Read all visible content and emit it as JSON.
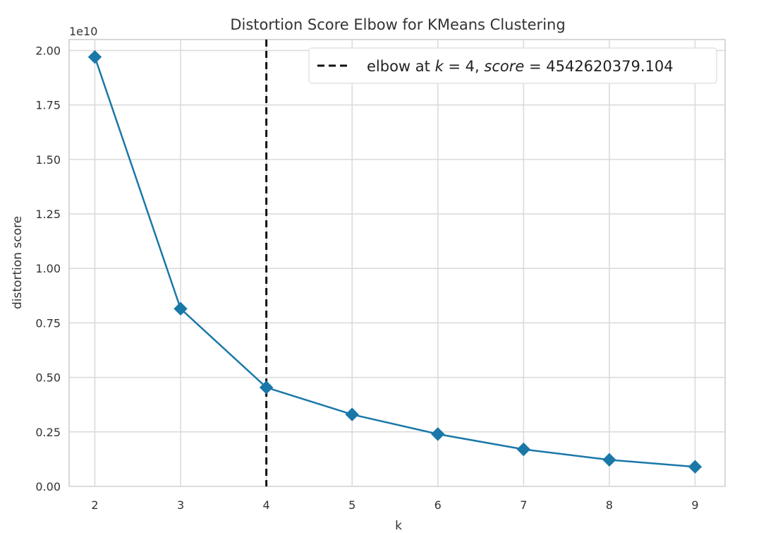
{
  "chart_data": {
    "type": "line",
    "title": "Distortion Score Elbow for KMeans Clustering",
    "xlabel": "k",
    "ylabel": "distortion score",
    "y_offset_label": "1e10",
    "x": [
      2,
      3,
      4,
      5,
      6,
      7,
      8,
      9
    ],
    "series": [
      {
        "values": [
          19.7,
          8.15,
          4.54,
          3.3,
          2.4,
          1.7,
          1.22,
          0.9
        ],
        "color": "#1a78a8",
        "marker": "diamond"
      }
    ],
    "x_ticks": [
      "2",
      "3",
      "4",
      "5",
      "6",
      "7",
      "8",
      "9"
    ],
    "y_ticks": [
      "0.00",
      "0.25",
      "0.50",
      "0.75",
      "1.00",
      "1.25",
      "1.50",
      "1.75",
      "2.00"
    ],
    "y_tick_values": [
      0,
      2.5,
      5,
      7.5,
      10,
      12.5,
      15,
      17.5,
      20
    ],
    "xlim": [
      1.7,
      9.35
    ],
    "ylim": [
      0,
      20.5
    ],
    "elbow": {
      "k": 4,
      "legend_prefix": "elbow at ",
      "legend_k": "k",
      "legend_eq1": " = 4, ",
      "legend_score": "score",
      "legend_eq2": " = 4542620379.104",
      "color": "#111111",
      "style": "dashed"
    },
    "legend_position": "top-right",
    "grid": true,
    "grid_color": "#d9d9d9",
    "background": "#ffffff"
  }
}
